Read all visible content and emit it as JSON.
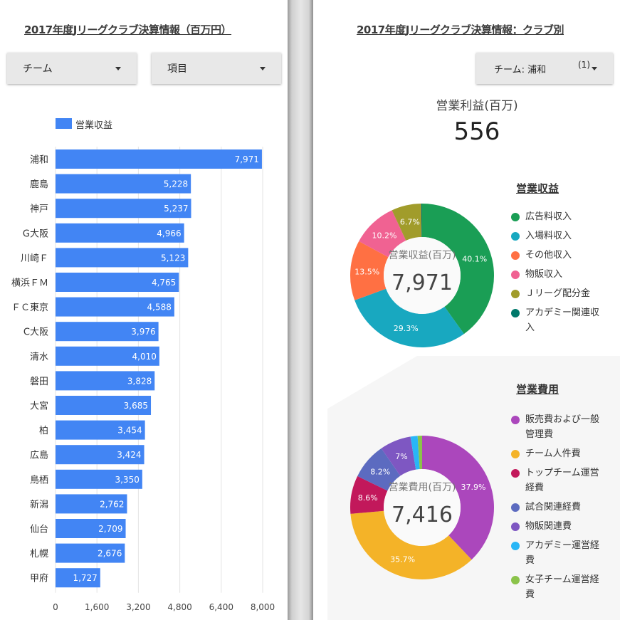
{
  "left": {
    "title": "2017年度Jリーグクラブ決算情報（百万円）",
    "dropdown_team": "チーム",
    "dropdown_item": "項目",
    "legend_label": "営業収益",
    "bar_color": "#4285f4"
  },
  "right": {
    "title": "2017年度Jリーグクラブ決算情報：クラブ別",
    "filter_label": "チーム: 浦和",
    "filter_count": "(1)",
    "kpi_label": "営業利益(百万)",
    "kpi_value": "556",
    "revenue_section": "営業収益",
    "expense_section": "営業費用"
  },
  "chart_data": [
    {
      "type": "bar",
      "orientation": "horizontal",
      "categories": [
        "浦和",
        "鹿島",
        "神戸",
        "G大阪",
        "川崎F",
        "横浜FM",
        "FC東京",
        "C大阪",
        "清水",
        "磐田",
        "大宮",
        "柏",
        "広島",
        "鳥栖",
        "新潟",
        "仙台",
        "札幌",
        "甲府"
      ],
      "category_labels": [
        "浦和",
        "鹿島",
        "神戸",
        "G大阪",
        "川崎Ｆ",
        "横浜ＦＭ",
        "ＦＣ東京",
        "C大阪",
        "清水",
        "磐田",
        "大宮",
        "柏",
        "広島",
        "鳥栖",
        "新潟",
        "仙台",
        "札幌",
        "甲府"
      ],
      "series": [
        {
          "name": "営業収益",
          "values": [
            7971,
            5228,
            5237,
            4966,
            5123,
            4765,
            4588,
            3976,
            4010,
            3828,
            3685,
            3454,
            3424,
            3350,
            2762,
            2709,
            2676,
            1727
          ]
        }
      ],
      "value_labels": [
        "7,971",
        "5,228",
        "5,237",
        "4,966",
        "5,123",
        "4,765",
        "4,588",
        "3,976",
        "4,010",
        "3,828",
        "3,685",
        "3,454",
        "3,424",
        "3,350",
        "2,762",
        "2,709",
        "2,676",
        "1,727"
      ],
      "xlim": [
        0,
        8000
      ],
      "xticks": [
        "0",
        "1,600",
        "3,200",
        "4,800",
        "6,400",
        "8,000"
      ],
      "xtick_values": [
        0,
        1600,
        3200,
        4800,
        6400,
        8000
      ],
      "grid": true,
      "legend": "top-left"
    },
    {
      "type": "pie",
      "style": "donut",
      "center_label": "営業収益(百万)",
      "center_value": "7,971",
      "slices": [
        {
          "name": "広告料収入",
          "value": 40.1,
          "label": "40.1%",
          "color": "#1a9e55"
        },
        {
          "name": "入場料収入",
          "value": 29.3,
          "label": "29.3%",
          "color": "#18a8c0"
        },
        {
          "name": "その他収入",
          "value": 13.5,
          "label": "13.5%",
          "color": "#ff7043"
        },
        {
          "name": "物販収入",
          "value": 10.2,
          "label": "10.2%",
          "color": "#f06292"
        },
        {
          "name": "Ｊリーグ配分金",
          "value": 6.7,
          "label": "6.7%",
          "color": "#a19c2b"
        },
        {
          "name": "アカデミー関連収入",
          "value": 0.2,
          "label": "",
          "color": "#00796b"
        }
      ],
      "legend_lines": [
        [
          "広告料収入"
        ],
        [
          "入場料収入"
        ],
        [
          "その他収入"
        ],
        [
          "物販収入"
        ],
        [
          "Ｊリーグ配分金"
        ],
        [
          "アカデミー関連収",
          "入"
        ]
      ],
      "legend": "right"
    },
    {
      "type": "pie",
      "style": "donut",
      "center_label": "営業費用(百万)",
      "center_value": "7,416",
      "slices": [
        {
          "name": "販売費および一般管理費",
          "value": 37.9,
          "label": "37.9%",
          "color": "#ab47bc"
        },
        {
          "name": "チーム人件費",
          "value": 35.7,
          "label": "35.7%",
          "color": "#f4b328"
        },
        {
          "name": "トップチーム運営経費",
          "value": 8.6,
          "label": "8.6%",
          "color": "#c2185b"
        },
        {
          "name": "試合関連経費",
          "value": 8.2,
          "label": "8.2%",
          "color": "#5c6bc0"
        },
        {
          "name": "物販関連費",
          "value": 7.0,
          "label": "7%",
          "color": "#7e57c2"
        },
        {
          "name": "アカデミー運営経費",
          "value": 1.6,
          "label": "",
          "color": "#29b6f6"
        },
        {
          "name": "女子チーム運営経費",
          "value": 1.0,
          "label": "",
          "color": "#8bc34a"
        }
      ],
      "legend_lines": [
        [
          "販売費および一般",
          "管理費"
        ],
        [
          "チーム人件費"
        ],
        [
          "トップチーム運営",
          "経費"
        ],
        [
          "試合関連経費"
        ],
        [
          "物販関連費"
        ],
        [
          "アカデミー運営経",
          "費"
        ],
        [
          "女子チーム運営経",
          "費"
        ]
      ],
      "legend": "right"
    }
  ]
}
